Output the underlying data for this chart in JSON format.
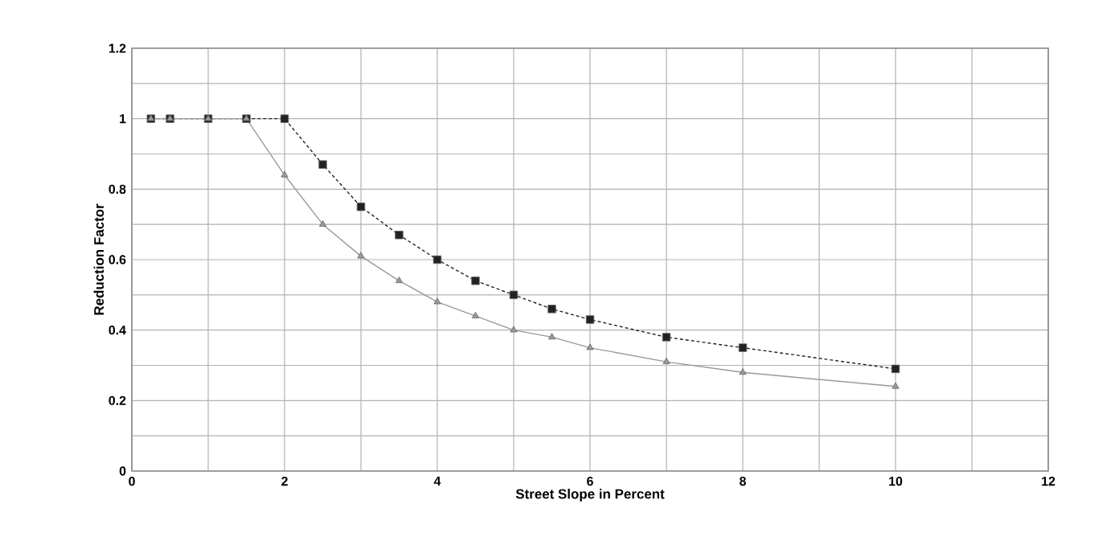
{
  "chart_data": {
    "type": "line",
    "xlabel": "Street Slope in Percent",
    "ylabel": "Reduction Factor",
    "xlim": [
      0,
      12
    ],
    "ylim": [
      0,
      1.2
    ],
    "xticks": [
      0,
      {
        "value": 1,
        "label": null
      },
      2,
      {
        "value": 3,
        "label": null
      },
      4,
      {
        "value": 5,
        "label": null
      },
      6,
      {
        "value": 7,
        "label": null
      },
      8,
      {
        "value": 9,
        "label": null
      },
      10,
      {
        "value": 11,
        "label": null
      },
      12
    ],
    "yticks": [
      0,
      {
        "value": 0.1,
        "label": null
      },
      0.2,
      {
        "value": 0.3,
        "label": null
      },
      0.4,
      {
        "value": 0.5,
        "label": null
      },
      0.6,
      {
        "value": 0.7,
        "label": null
      },
      0.8,
      {
        "value": 0.9,
        "label": null
      },
      1,
      {
        "value": 1.1,
        "label": null
      },
      1.2
    ],
    "grid": true,
    "series": [
      {
        "color": "#222222",
        "marker": "square",
        "line_style": "dashed",
        "x": [
          0.25,
          0.5,
          1,
          1.5,
          2,
          2.5,
          3,
          3.5,
          4,
          4.5,
          5,
          5.5,
          6,
          7,
          8,
          10
        ],
        "values": [
          1,
          1,
          1,
          1,
          1,
          0.87,
          0.75,
          0.67,
          0.6,
          0.54,
          0.5,
          0.46,
          0.43,
          0.38,
          0.35,
          0.29
        ]
      },
      {
        "color": "#999999",
        "marker": "triangle",
        "line_style": "solid",
        "x": [
          0.25,
          0.5,
          1,
          1.5,
          2,
          2.5,
          3,
          3.5,
          4,
          4.5,
          5,
          5.5,
          6,
          7,
          8,
          10
        ],
        "values": [
          1,
          1,
          1,
          1,
          0.84,
          0.7,
          0.61,
          0.54,
          0.48,
          0.44,
          0.4,
          0.38,
          0.35,
          0.31,
          0.28,
          0.24
        ]
      }
    ]
  }
}
